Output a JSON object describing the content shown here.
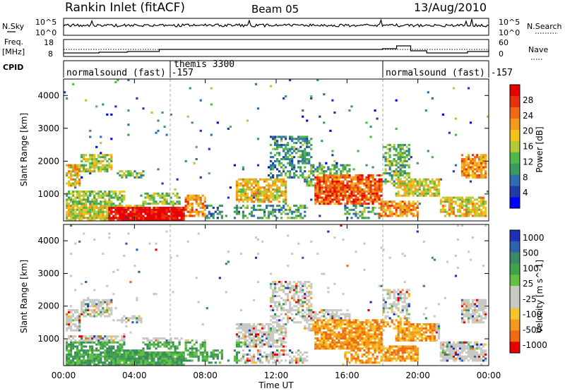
{
  "header": {
    "station": "Rankin Inlet (fitACF)",
    "beam": "Beam 05",
    "date": "13/Aug/2010"
  },
  "strip_labels": {
    "nsky": "N.Sky",
    "nsearch": "N.Search",
    "freq_line1": "Freq.",
    "freq_line2": "[MHz]",
    "nave": "Nave",
    "cpid": "CPID"
  },
  "noise_axis": {
    "left_top": "10^5",
    "left_bottom": "10^0",
    "right_top": "10^5",
    "right_bottom": "10^0"
  },
  "freq_axis": {
    "left_top": "18",
    "left_bottom": "8",
    "right_top": "60",
    "right_bottom": "0"
  },
  "cpid_segments": [
    {
      "label": "normalsound (fast) -157",
      "start_hour": 0
    },
    {
      "label": "themis 3300",
      "start_hour": 6
    },
    {
      "label": "normalsound (fast) -157",
      "start_hour": 18
    }
  ],
  "colors": {
    "power": [
      "#0000ff",
      "#1f3ca8",
      "#2f6fb0",
      "#3c9a5e",
      "#4fb84a",
      "#b5c938",
      "#f5c21a",
      "#f39a1a",
      "#ef6a12",
      "#e8300b",
      "#e60000"
    ],
    "velocity": [
      "#1f2fb8",
      "#2f62ad",
      "#3a8a64",
      "#3fa34a",
      "#62c240",
      "#c9c9c4",
      "#c9c9c4",
      "#f3c52a",
      "#f39a1a",
      "#ef6a10",
      "#e60000"
    ]
  },
  "chart_data": [
    {
      "type": "heatmap",
      "title": "Power",
      "xlabel": "Time UT",
      "ylabel": "Slant Range [km]",
      "x_ticks": [
        "00:00",
        "04:00",
        "08:00",
        "12:00",
        "16:00",
        "20:00",
        "00:00"
      ],
      "y_ticks": [
        "1000",
        "2000",
        "3000",
        "4000"
      ],
      "xlim_hours": [
        0,
        24
      ],
      "ylim_km": [
        180,
        4500
      ],
      "colorbar": {
        "label": "Power [dB]",
        "ticks": [
          "4",
          "8",
          "12",
          "16",
          "20",
          "24",
          "28"
        ],
        "range": [
          0,
          30
        ]
      }
    },
    {
      "type": "heatmap",
      "title": "Velocity",
      "xlabel": "Time UT",
      "ylabel": "Slant Range [km]",
      "x_ticks": [
        "00:00",
        "04:00",
        "08:00",
        "12:00",
        "16:00",
        "20:00",
        "00:00"
      ],
      "y_ticks": [
        "1000",
        "2000",
        "3000",
        "4000"
      ],
      "xlim_hours": [
        0,
        24
      ],
      "ylim_km": [
        180,
        4500
      ],
      "colorbar": {
        "label": "Velocity [m s^-1]",
        "ticks": [
          "1000",
          "500",
          "100",
          "25",
          "-25",
          "-100",
          "-500",
          "-1000"
        ]
      }
    }
  ]
}
